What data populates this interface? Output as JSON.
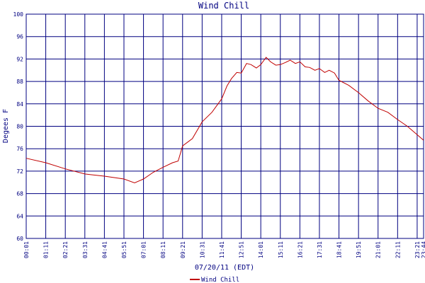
{
  "chart_data": {
    "type": "line",
    "title": "Wind Chill",
    "x_label": "07/20/11 (EDT)",
    "y_label": "Degees F",
    "xlim": [
      1,
      1424
    ],
    "ylim": [
      60,
      100
    ],
    "xticks": [
      {
        "value": 1,
        "label": "00:01"
      },
      {
        "value": 71,
        "label": "01:11"
      },
      {
        "value": 141,
        "label": "02:21"
      },
      {
        "value": 211,
        "label": "03:31"
      },
      {
        "value": 281,
        "label": "04:41"
      },
      {
        "value": 351,
        "label": "05:51"
      },
      {
        "value": 421,
        "label": "07:01"
      },
      {
        "value": 491,
        "label": "08:11"
      },
      {
        "value": 561,
        "label": "09:21"
      },
      {
        "value": 631,
        "label": "10:31"
      },
      {
        "value": 701,
        "label": "11:41"
      },
      {
        "value": 771,
        "label": "12:51"
      },
      {
        "value": 841,
        "label": "14:01"
      },
      {
        "value": 911,
        "label": "15:11"
      },
      {
        "value": 981,
        "label": "16:21"
      },
      {
        "value": 1051,
        "label": "17:31"
      },
      {
        "value": 1121,
        "label": "18:41"
      },
      {
        "value": 1191,
        "label": "19:51"
      },
      {
        "value": 1261,
        "label": "21:01"
      },
      {
        "value": 1331,
        "label": "22:11"
      },
      {
        "value": 1401,
        "label": "23:21"
      },
      {
        "value": 1424,
        "label": "23:44"
      }
    ],
    "yticks": [
      60,
      64,
      68,
      72,
      76,
      80,
      84,
      88,
      92,
      96,
      100
    ],
    "grid": true,
    "x": [
      1,
      71,
      141,
      211,
      281,
      351,
      389,
      421,
      456,
      491,
      525,
      545,
      561,
      596,
      631,
      666,
      701,
      720,
      736,
      755,
      771,
      790,
      806,
      825,
      841,
      860,
      876,
      895,
      911,
      930,
      946,
      965,
      981,
      1000,
      1016,
      1035,
      1051,
      1070,
      1086,
      1105,
      1121,
      1156,
      1191,
      1226,
      1261,
      1296,
      1331,
      1366,
      1401,
      1424
    ],
    "series": [
      {
        "name": "Wind Chill",
        "color": "#c00000",
        "values": [
          74.3,
          73.5,
          72.4,
          71.5,
          71.1,
          70.6,
          69.9,
          70.6,
          71.8,
          72.7,
          73.5,
          73.8,
          76.5,
          77.8,
          80.8,
          82.5,
          84.9,
          87.2,
          88.5,
          89.6,
          89.5,
          91.2,
          91.0,
          90.4,
          91.0,
          92.3,
          91.5,
          90.9,
          91.0,
          91.4,
          91.8,
          91.2,
          91.5,
          90.6,
          90.5,
          90.0,
          90.3,
          89.6,
          90.0,
          89.5,
          88.2,
          87.3,
          86.0,
          84.5,
          83.2,
          82.5,
          81.2,
          80.0,
          78.5,
          77.5
        ]
      }
    ]
  }
}
